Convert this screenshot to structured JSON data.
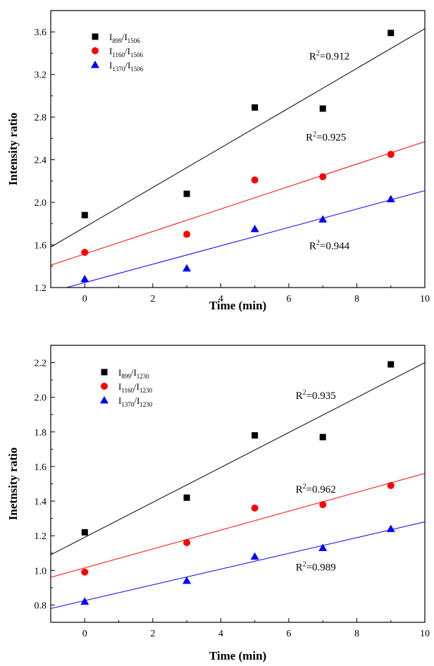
{
  "chart_data": [
    {
      "type": "scatter",
      "ylabel": "Intensity ratio",
      "xlabel": "Time (min)",
      "xlim": [
        -1,
        10
      ],
      "ylim": [
        1.2,
        3.8
      ],
      "xticks": [
        "0",
        "2",
        "4",
        "6",
        "8",
        "10"
      ],
      "yticks": [
        "1.2",
        "1.6",
        "2.0",
        "2.4",
        "2.8",
        "3.2",
        "3.6"
      ],
      "legend_position": "top-left",
      "series": [
        {
          "name": "I899/I1506",
          "name_main": "I",
          "name_sub1": "899",
          "name_mid": "/I",
          "name_sub2": "1506",
          "marker": "square",
          "color": "#000000",
          "x": [
            0,
            3,
            5,
            7,
            9
          ],
          "y": [
            1.88,
            2.08,
            2.89,
            2.88,
            3.59
          ],
          "fit": {
            "x1": -1,
            "y1": 1.58,
            "x2": 10,
            "y2": 3.63
          },
          "r2": "=0.912",
          "r2_x": 6.6,
          "r2_y": 3.34
        },
        {
          "name": "I1160/I1506",
          "name_main": "I",
          "name_sub1": "1160",
          "name_mid": "/I",
          "name_sub2": "1506",
          "marker": "circle",
          "color": "#ff0000",
          "x": [
            0,
            3,
            5,
            7,
            9
          ],
          "y": [
            1.53,
            1.7,
            2.21,
            2.24,
            2.45
          ],
          "fit": {
            "x1": -1,
            "y1": 1.41,
            "x2": 10,
            "y2": 2.57
          },
          "r2": "=0.925",
          "r2_x": 6.5,
          "r2_y": 2.58
        },
        {
          "name": "I1370/I1506",
          "name_main": "I",
          "name_sub1": "1370",
          "name_mid": "/I",
          "name_sub2": "1506",
          "marker": "triangle",
          "color": "#0000ff",
          "x": [
            0,
            3,
            5,
            7,
            9
          ],
          "y": [
            1.28,
            1.38,
            1.75,
            1.84,
            2.03
          ],
          "fit": {
            "x1": -1,
            "y1": 1.16,
            "x2": 10,
            "y2": 2.11
          },
          "r2": "=0.944",
          "r2_x": 6.6,
          "r2_y": 1.56
        }
      ]
    },
    {
      "type": "scatter",
      "ylabel": "Inetnsity ratio",
      "xlabel": "Time (min)",
      "xlim": [
        -1,
        10
      ],
      "ylim": [
        0.7,
        2.3
      ],
      "xticks": [
        "0",
        "2",
        "4",
        "6",
        "8",
        "10"
      ],
      "yticks": [
        "0.8",
        "1.0",
        "1.2",
        "1.4",
        "1.6",
        "1.8",
        "2.0",
        "2.2"
      ],
      "legend_position": "top-left",
      "series": [
        {
          "name": "I899/I1230",
          "name_main": "I",
          "name_sub1": "899",
          "name_mid": "/I",
          "name_sub2": "1230",
          "marker": "square",
          "color": "#000000",
          "x": [
            0,
            3,
            5,
            7,
            9
          ],
          "y": [
            1.22,
            1.42,
            1.78,
            1.77,
            2.19
          ],
          "fit": {
            "x1": -1,
            "y1": 1.09,
            "x2": 10,
            "y2": 2.2
          },
          "r2": "=0.935",
          "r2_x": 6.2,
          "r2_y": 1.99
        },
        {
          "name": "I1160/I1230",
          "name_main": "I",
          "name_sub1": "1160",
          "name_mid": "/I",
          "name_sub2": "1230",
          "marker": "circle",
          "color": "#ff0000",
          "x": [
            0,
            3,
            5,
            7,
            9
          ],
          "y": [
            0.99,
            1.16,
            1.36,
            1.38,
            1.49
          ],
          "fit": {
            "x1": -1,
            "y1": 0.96,
            "x2": 10,
            "y2": 1.56
          },
          "r2": "=0.962",
          "r2_x": 6.2,
          "r2_y": 1.45
        },
        {
          "name": "I1370/I1230",
          "name_main": "I",
          "name_sub1": "1370",
          "name_mid": "/I",
          "name_sub2": "1230",
          "marker": "triangle",
          "color": "#0000ff",
          "x": [
            0,
            3,
            5,
            7,
            9
          ],
          "y": [
            0.82,
            0.94,
            1.08,
            1.13,
            1.24
          ],
          "fit": {
            "x1": -1,
            "y1": 0.78,
            "x2": 10,
            "y2": 1.28
          },
          "r2": "=0.989",
          "r2_x": 6.2,
          "r2_y": 1.0
        }
      ]
    }
  ]
}
